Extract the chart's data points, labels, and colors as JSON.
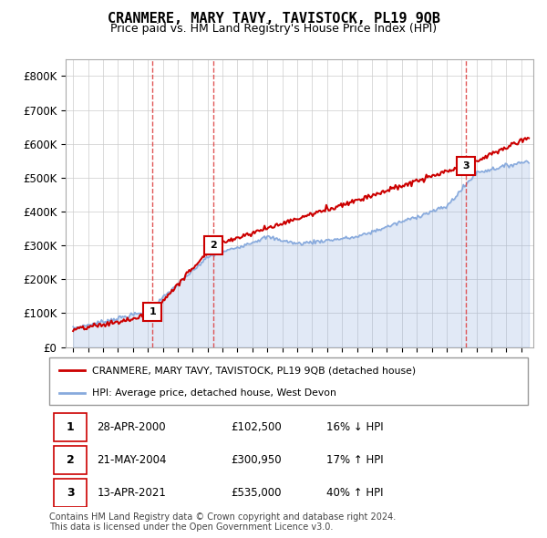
{
  "title": "CRANMERE, MARY TAVY, TAVISTOCK, PL19 9QB",
  "subtitle": "Price paid vs. HM Land Registry's House Price Index (HPI)",
  "red_line_label": "CRANMERE, MARY TAVY, TAVISTOCK, PL19 9QB (detached house)",
  "blue_line_label": "HPI: Average price, detached house, West Devon",
  "transactions": [
    {
      "num": 1,
      "date": "28-APR-2000",
      "price": 102500,
      "pct": "16%",
      "dir": "↓"
    },
    {
      "num": 2,
      "date": "21-MAY-2004",
      "price": 300950,
      "pct": "17%",
      "dir": "↑"
    },
    {
      "num": 3,
      "date": "13-APR-2021",
      "price": 535000,
      "pct": "40%",
      "dir": "↑"
    }
  ],
  "footer": "Contains HM Land Registry data © Crown copyright and database right 2024.\nThis data is licensed under the Open Government Licence v3.0.",
  "ylim": [
    0,
    850000
  ],
  "yticks": [
    0,
    100000,
    200000,
    300000,
    400000,
    500000,
    600000,
    700000,
    800000
  ],
  "ytick_labels": [
    "£0",
    "£100K",
    "£200K",
    "£300K",
    "£400K",
    "£500K",
    "£600K",
    "£700K",
    "£800K"
  ],
  "xlim": [
    1994.5,
    2025.8
  ],
  "vline_years": [
    2000.32,
    2004.38,
    2021.27
  ],
  "background_color": "#ffffff",
  "plot_bg_color": "#ffffff",
  "grid_color": "#cccccc",
  "red_color": "#cc0000",
  "blue_color": "#88aadd",
  "vline_color": "#dd4444",
  "tx_coords": [
    [
      2000.32,
      102500,
      "1"
    ],
    [
      2004.38,
      300950,
      "2"
    ],
    [
      2021.27,
      535000,
      "3"
    ]
  ]
}
